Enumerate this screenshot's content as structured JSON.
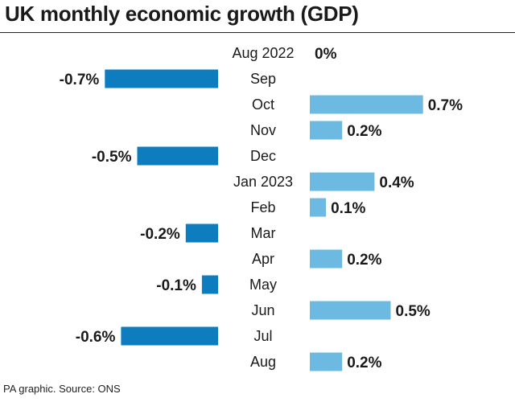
{
  "title": "UK monthly economic growth (GDP)",
  "source": "PA graphic. Source: ONS",
  "colors": {
    "negative": "#0d7dbf",
    "positive": "#6cb9e1",
    "text": "#1a1a1a"
  },
  "chart_data": {
    "type": "bar",
    "orientation": "horizontal-diverging",
    "categories": [
      "Aug 2022",
      "Sep",
      "Oct",
      "Nov",
      "Dec",
      "Jan 2023",
      "Feb",
      "Mar",
      "Apr",
      "May",
      "Jun",
      "Jul",
      "Aug"
    ],
    "values": [
      0,
      -0.7,
      0.7,
      0.2,
      -0.5,
      0.4,
      0.1,
      -0.2,
      0.2,
      -0.1,
      0.5,
      -0.6,
      0.2
    ],
    "value_labels": [
      "0%",
      "-0.7%",
      "0.7%",
      "0.2%",
      "-0.5%",
      "0.4%",
      "0.1%",
      "-0.2%",
      "0.2%",
      "-0.1%",
      "0.5%",
      "-0.6%",
      "0.2%"
    ],
    "unit": "%",
    "title": "UK monthly economic growth (GDP)",
    "xlabel": "",
    "ylabel": "",
    "grid": false
  }
}
